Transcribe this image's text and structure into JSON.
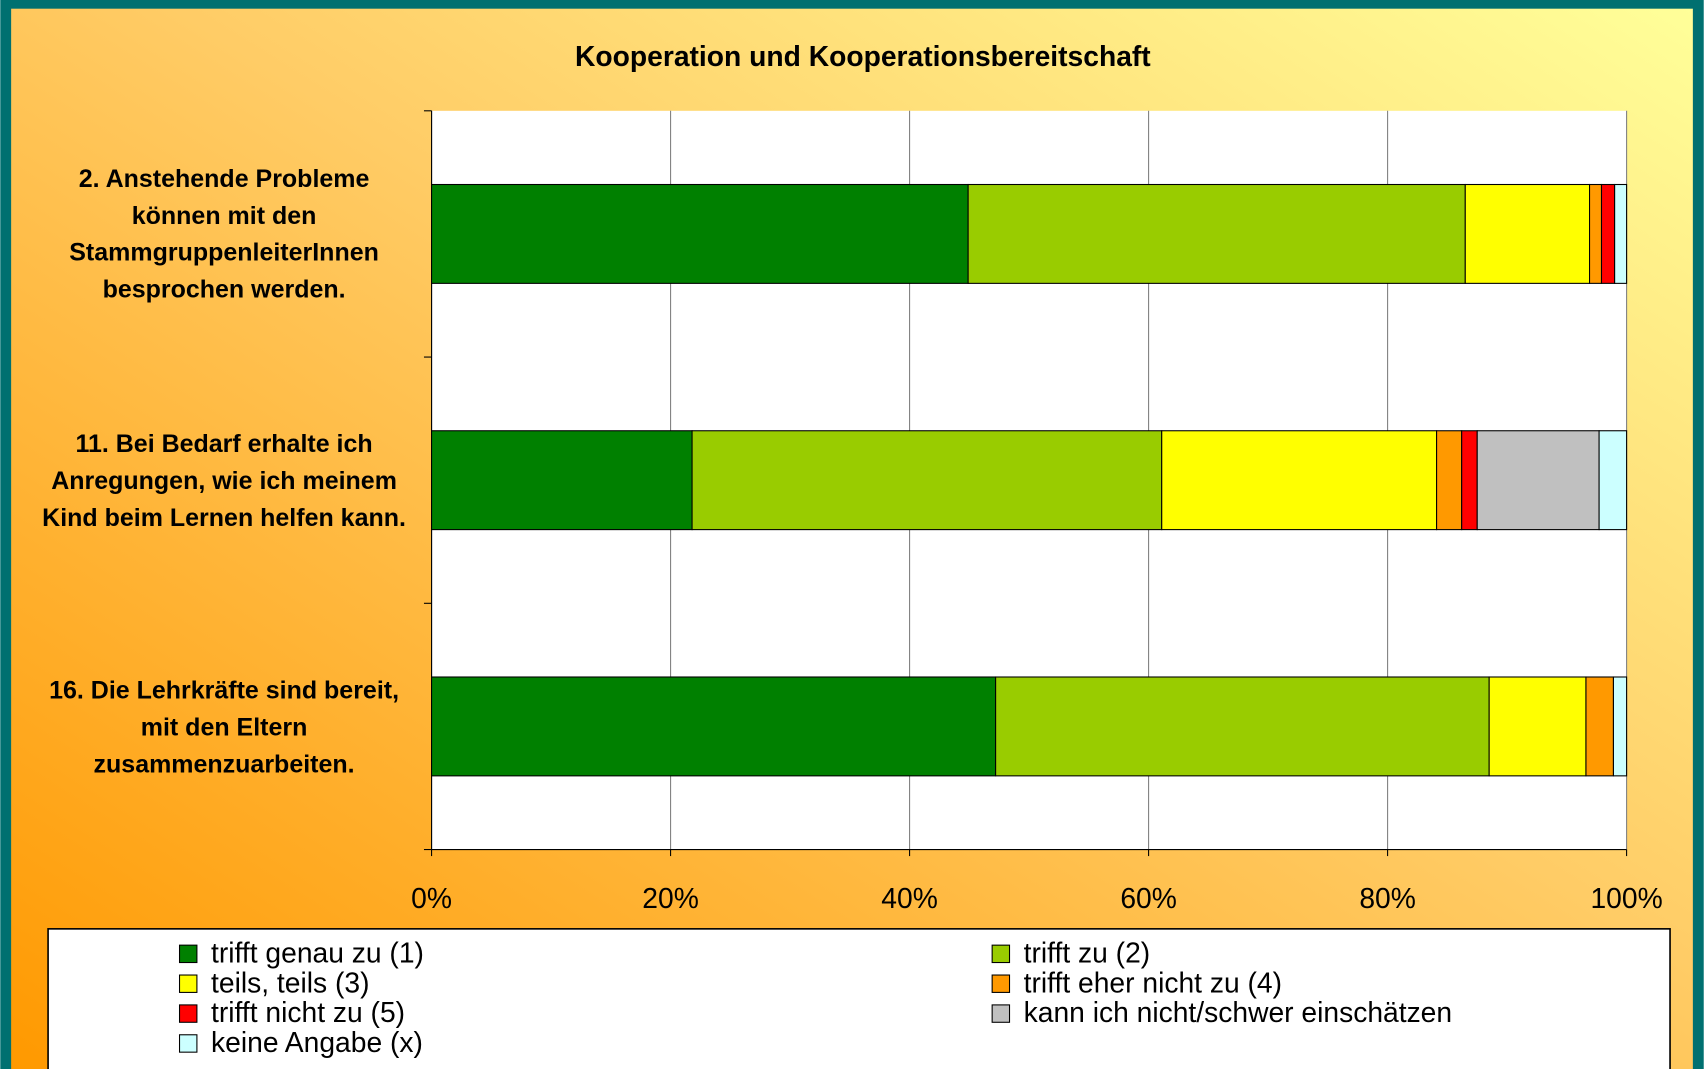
{
  "chart_data": {
    "type": "stacked_barh",
    "title": "Kooperation und Kooperationsbereitschaft",
    "categories": [
      "2. Anstehende Probleme können mit den StammgruppenleiterInnen besprochen werden.",
      "11. Bei Bedarf erhalte ich Anregungen, wie  ich meinem Kind beim Lernen helfen  kann.",
      "16. Die Lehrkräfte sind bereit, mit den Eltern zusammenzuarbeiten."
    ],
    "series": [
      {
        "name": "trifft genau zu (1)",
        "color": "#008000",
        "values": [
          44.9,
          21.8,
          47.2
        ]
      },
      {
        "name": "trifft zu (2)",
        "color": "#99cc00",
        "values": [
          41.6,
          39.3,
          41.3
        ]
      },
      {
        "name": "teils, teils (3)",
        "color": "#ffff00",
        "values": [
          10.4,
          23.0,
          8.1
        ]
      },
      {
        "name": "trifft eher nicht zu (4)",
        "color": "#ff9900",
        "values": [
          1.0,
          2.1,
          2.3
        ]
      },
      {
        "name": "trifft nicht zu (5)",
        "color": "#ff0000",
        "values": [
          1.1,
          1.3,
          0
        ]
      },
      {
        "name": "kann ich nicht/schwer einschätzen",
        "color": "#c0c0c0",
        "values": [
          0,
          10.2,
          0
        ]
      },
      {
        "name": "keine Angabe (x)",
        "color": "#ccffff",
        "values": [
          1.0,
          2.3,
          1.1
        ]
      }
    ],
    "xlim": [
      0,
      100
    ],
    "xticks": [
      {
        "value": 0,
        "label": "0%"
      },
      {
        "value": 20,
        "label": "20%"
      },
      {
        "value": 40,
        "label": "40%"
      },
      {
        "value": 60,
        "label": "60%"
      },
      {
        "value": 80,
        "label": "80%"
      },
      {
        "value": 100,
        "label": "100%"
      }
    ],
    "grid": true
  }
}
